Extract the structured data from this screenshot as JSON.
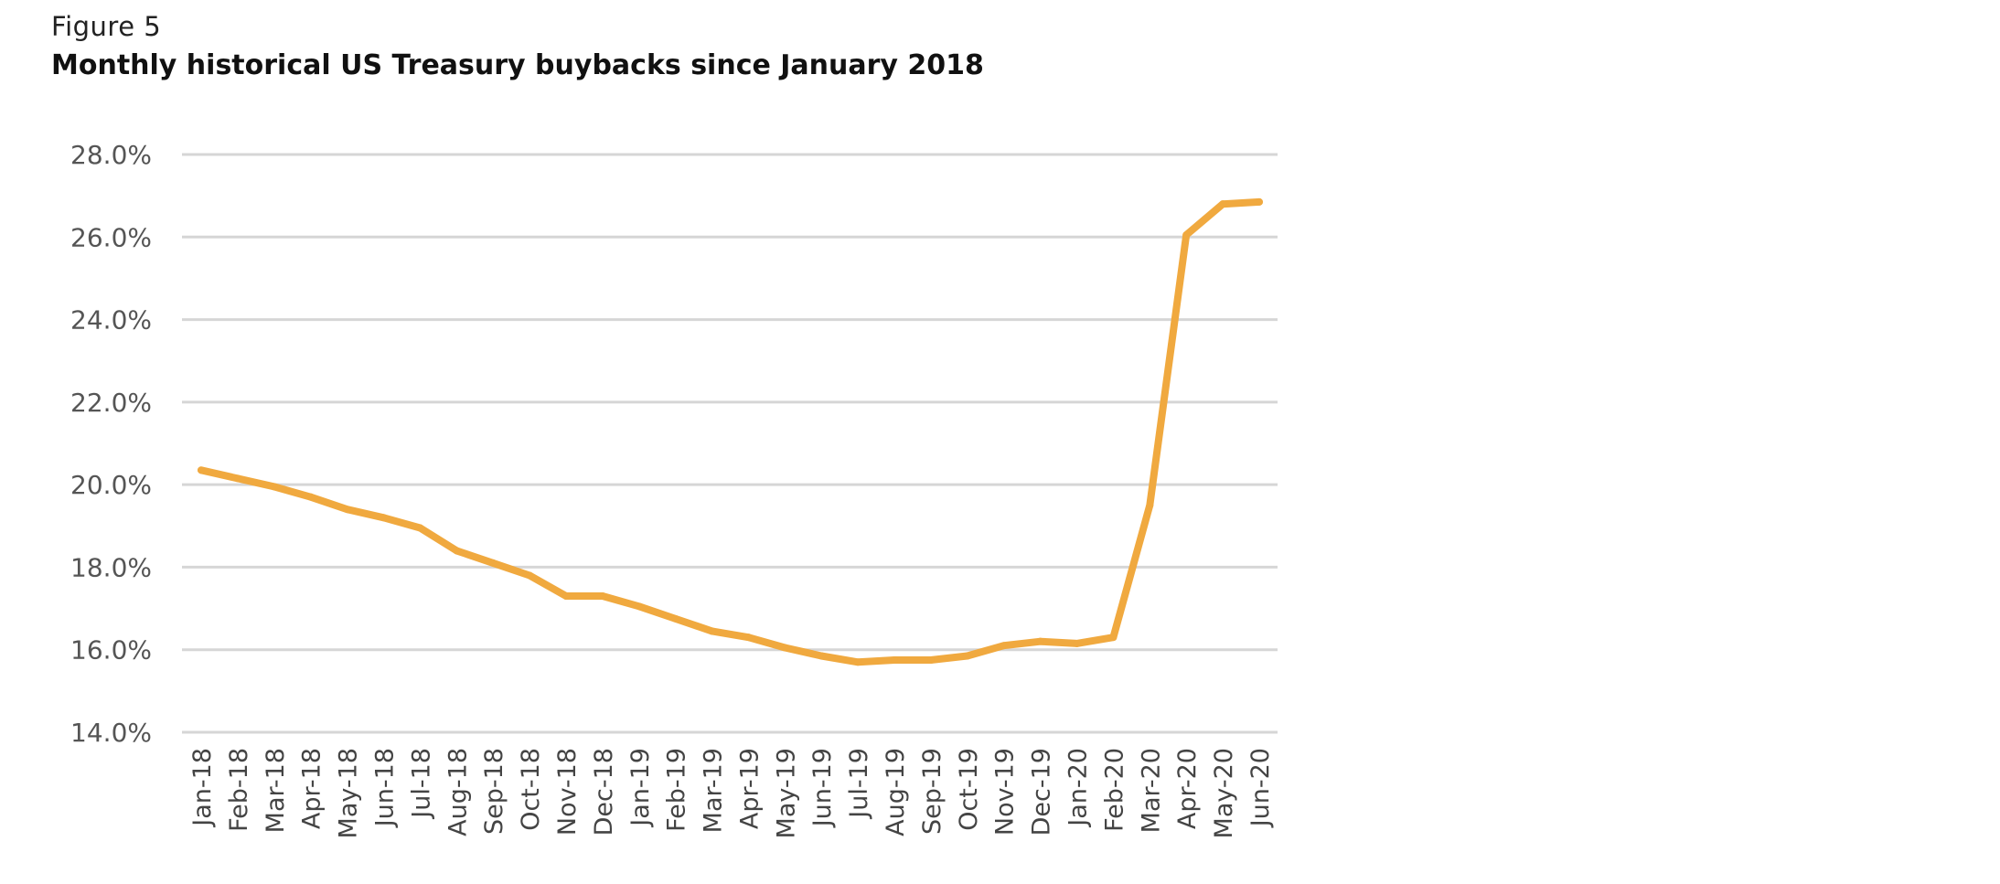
{
  "figure": {
    "label": "Figure 5",
    "title": "Monthly historical US Treasury buybacks since January 2018"
  },
  "chart_data": {
    "type": "line",
    "title": "Monthly historical US Treasury buybacks since January 2018",
    "xlabel": "",
    "ylabel": "",
    "ylim": [
      14,
      28
    ],
    "y_ticks": [
      14,
      16,
      18,
      20,
      22,
      24,
      26,
      28
    ],
    "y_tick_labels": [
      "14.0%",
      "16.0%",
      "18.0%",
      "20.0%",
      "22.0%",
      "24.0%",
      "26.0%",
      "28.0%"
    ],
    "grid": true,
    "legend": "none",
    "categories": [
      "Jan-18",
      "Feb-18",
      "Mar-18",
      "Apr-18",
      "May-18",
      "Jun-18",
      "Jul-18",
      "Aug-18",
      "Sep-18",
      "Oct-18",
      "Nov-18",
      "Dec-18",
      "Jan-19",
      "Feb-19",
      "Mar-19",
      "Apr-19",
      "May-19",
      "Jun-19",
      "Jul-19",
      "Aug-19",
      "Sep-19",
      "Oct-19",
      "Nov-19",
      "Dec-19",
      "Jan-20",
      "Feb-20",
      "Mar-20",
      "Apr-20",
      "May-20",
      "Jun-20"
    ],
    "series": [
      {
        "name": "",
        "color": "#F0A93F",
        "values": [
          20.35,
          20.15,
          19.95,
          19.7,
          19.4,
          19.2,
          18.95,
          18.4,
          18.1,
          17.8,
          17.3,
          17.3,
          17.05,
          16.75,
          16.45,
          16.3,
          16.05,
          15.85,
          15.7,
          15.75,
          15.75,
          15.85,
          16.1,
          16.2,
          16.15,
          16.3,
          19.5,
          26.05,
          26.8,
          26.85
        ]
      }
    ],
    "colors": {
      "line": "#F0A93F",
      "grid": "#D6D6D6"
    }
  }
}
